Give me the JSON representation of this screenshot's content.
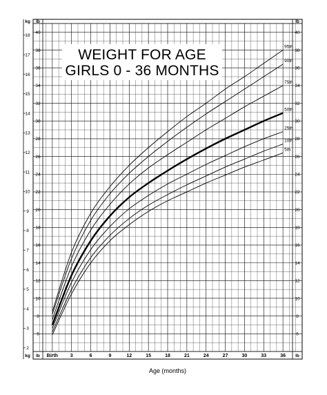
{
  "chart_data": {
    "type": "line",
    "title": [
      "WEIGHT FOR AGE",
      "GIRLS 0 - 36 MONTHS"
    ],
    "xlabel": "Age (months)",
    "left_unit_label": "kg",
    "right_unit_label": "lb",
    "bottom_left_unit_label": "kg",
    "bottom_right_unit_label": "lb",
    "bottom_center_unit_label": "lb",
    "x_tick_labels": [
      "Birth",
      "3",
      "6",
      "9",
      "12",
      "15",
      "18",
      "21",
      "24",
      "27",
      "30",
      "33",
      "36"
    ],
    "x_ticks": [
      0,
      3,
      6,
      9,
      12,
      15,
      18,
      21,
      24,
      27,
      30,
      33,
      36
    ],
    "xlim": [
      -3,
      39
    ],
    "ylim_lb": [
      4,
      41
    ],
    "kg_ticks": [
      2,
      3,
      4,
      5,
      6,
      7,
      8,
      9,
      10,
      11,
      12,
      13,
      14,
      15,
      16,
      17,
      18
    ],
    "lb_ticks": [
      6,
      8,
      10,
      12,
      14,
      16,
      18,
      20,
      22,
      24,
      26,
      28,
      30,
      32,
      34,
      36,
      38,
      40
    ],
    "grid": true,
    "x": [
      0,
      3,
      6,
      9,
      12,
      15,
      18,
      21,
      24,
      27,
      30,
      33,
      36
    ],
    "series": [
      {
        "name": "95th",
        "values_lb": [
          8.5,
          15.2,
          19.6,
          22.6,
          25.0,
          27.0,
          28.8,
          30.5,
          32.0,
          33.6,
          35.0,
          36.5,
          38.0
        ]
      },
      {
        "name": "90th",
        "values_lb": [
          8.2,
          14.5,
          18.8,
          21.8,
          24.1,
          26.0,
          27.7,
          29.3,
          30.8,
          32.2,
          33.6,
          35.0,
          36.4
        ]
      },
      {
        "name": "75th",
        "values_lb": [
          7.6,
          13.6,
          17.7,
          20.6,
          22.9,
          24.7,
          26.2,
          27.6,
          29.0,
          30.3,
          31.6,
          32.8,
          34.0
        ]
      },
      {
        "name": "50th",
        "values_lb": [
          7.0,
          12.6,
          16.5,
          19.3,
          21.4,
          23.0,
          24.4,
          25.7,
          26.9,
          28.0,
          29.0,
          30.0,
          30.9
        ]
      },
      {
        "name": "25th",
        "values_lb": [
          6.6,
          11.8,
          15.5,
          18.1,
          20.1,
          21.6,
          22.9,
          24.0,
          25.1,
          26.1,
          27.1,
          28.0,
          28.8
        ]
      },
      {
        "name": "10th",
        "values_lb": [
          6.2,
          11.0,
          14.6,
          17.1,
          19.0,
          20.5,
          21.7,
          22.8,
          23.8,
          24.8,
          25.7,
          26.6,
          27.4
        ]
      },
      {
        "name": "5th",
        "values_lb": [
          5.9,
          10.5,
          14.0,
          16.5,
          18.3,
          19.8,
          21.0,
          22.0,
          23.0,
          23.9,
          24.8,
          25.6,
          26.4
        ]
      }
    ],
    "emphasized_series": "50th"
  }
}
